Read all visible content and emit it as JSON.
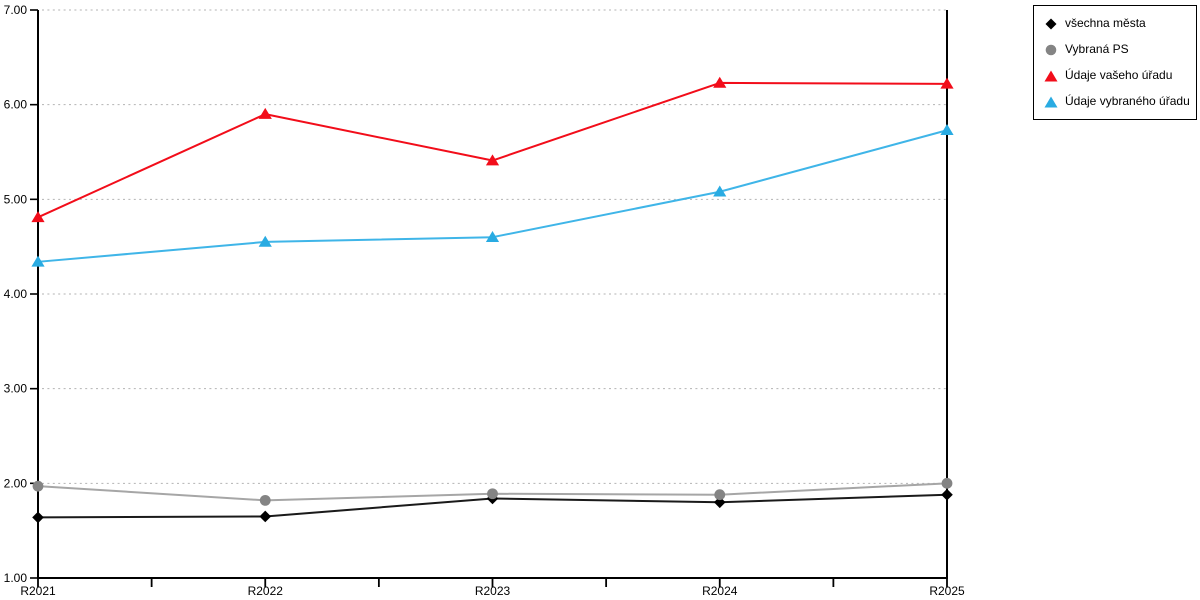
{
  "chart_data": {
    "type": "line",
    "categories": [
      "R2021",
      "R2022",
      "R2023",
      "R2024",
      "R2025"
    ],
    "series": [
      {
        "name": "všechna města",
        "marker": "diamond",
        "color": "#000000",
        "line_color": "#1a1a1a",
        "values": [
          1.64,
          1.65,
          1.84,
          1.8,
          1.88
        ]
      },
      {
        "name": "Vybraná PS",
        "marker": "circle",
        "color": "#848484",
        "line_color": "#a6a6a6",
        "values": [
          1.97,
          1.82,
          1.89,
          1.88,
          2.0
        ]
      },
      {
        "name": "Údaje vašeho úřadu",
        "marker": "triangle",
        "color": "#f20d1a",
        "line_color": "#f20d1a",
        "values": [
          4.81,
          5.9,
          5.41,
          6.23,
          6.22
        ]
      },
      {
        "name": "Údaje vybraného úřadu",
        "marker": "triangle",
        "color": "#29abe2",
        "line_color": "#3fb5e8",
        "values": [
          4.34,
          4.55,
          4.6,
          5.08,
          5.73
        ]
      }
    ],
    "title": "",
    "xlabel": "",
    "ylabel": "",
    "ylim": [
      1,
      7
    ],
    "ytick_labels": [
      "1.00",
      "2.00",
      "3.00",
      "4.00",
      "5.00",
      "6.00",
      "7.00"
    ],
    "grid": "horizontal-dotted",
    "grid_color": "#b3b3b3",
    "axis_color": "#000000",
    "legend_position": "top-right"
  }
}
